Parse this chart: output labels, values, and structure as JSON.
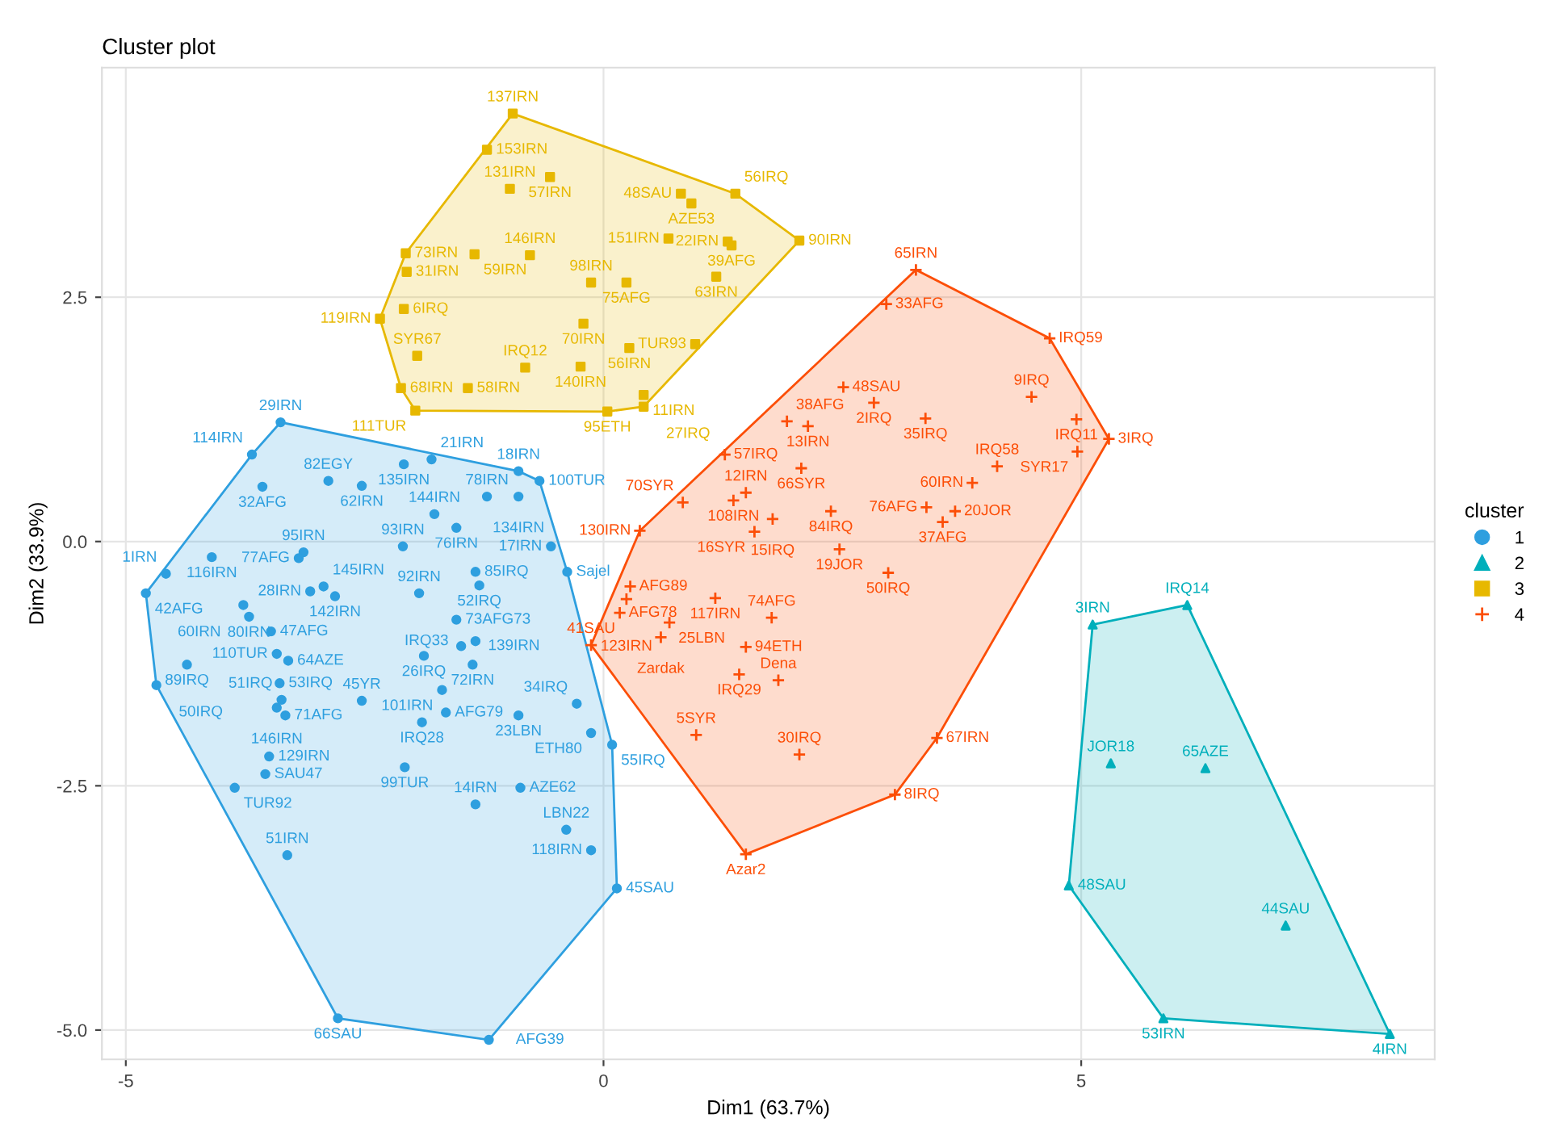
{
  "chart_data": {
    "type": "scatter",
    "title": "Cluster plot",
    "xlabel": "Dim1 (63.7%)",
    "ylabel": "Dim2 (33.9%)",
    "legend_title": "cluster",
    "legend": "right",
    "grid": true,
    "xlim": [
      -5.25,
      8.7
    ],
    "ylim": [
      -5.3,
      4.85
    ],
    "xticks": [
      -5,
      0,
      5
    ],
    "yticks": [
      {
        "value": -5,
        "label": "-5.0"
      },
      {
        "value": -2.5,
        "label": "-2.5"
      },
      {
        "value": 0,
        "label": "0.0"
      },
      {
        "value": 2.5,
        "label": "2.5"
      }
    ],
    "series": [
      {
        "name": "1",
        "color": "#2e9fdf",
        "marker": "circle",
        "x": [
          -3.38,
          -3.68,
          -2.09,
          -1.8,
          -0.89,
          -0.67,
          -3.57,
          -2.88,
          -2.53,
          -1.77,
          -1.22,
          -0.89,
          -0.55,
          -4.1,
          -4.58,
          -4.79,
          -3.14,
          -3.19,
          -2.1,
          -1.54,
          -2.93,
          -3.07,
          -2.81,
          -3.77,
          -1.34,
          -1.54,
          -1.3,
          -0.38,
          -3.48,
          -3.3,
          -3.42,
          -4.36,
          -4.68,
          -3.39,
          -3.37,
          -3.42,
          -3.33,
          -2.53,
          -1.49,
          -1.34,
          -1.88,
          -1.37,
          -1.69,
          -1.65,
          -1.9,
          -0.89,
          -0.28,
          -0.13,
          -3.5,
          -3.54,
          -3.86,
          -3.31,
          -2.78,
          -1.2,
          -2.08,
          -1.34,
          -0.87,
          -0.39,
          -0.13,
          0.14,
          0.09,
          -1.93,
          -3.71
        ],
        "values": [
          1.22,
          0.89,
          0.79,
          0.84,
          0.72,
          0.62,
          0.56,
          0.62,
          0.57,
          0.28,
          0.46,
          0.46,
          -0.05,
          -0.16,
          -0.33,
          -0.53,
          -0.11,
          -0.17,
          -0.05,
          0.14,
          -0.46,
          -0.51,
          -0.56,
          -0.65,
          -0.31,
          -0.8,
          -0.45,
          -0.31,
          -0.92,
          -1.22,
          -1.15,
          -1.26,
          -1.47,
          -1.45,
          -1.62,
          -1.7,
          -1.78,
          -1.63,
          -1.07,
          -1.02,
          -1.17,
          -1.26,
          -1.52,
          -1.75,
          -1.85,
          -1.78,
          -1.66,
          -1.96,
          -2.2,
          -2.38,
          -2.52,
          -3.21,
          -4.88,
          -5.1,
          -2.31,
          -2.69,
          -2.52,
          -2.95,
          -3.16,
          -3.55,
          -2.08,
          -0.53,
          -0.77
        ]
      },
      {
        "name": "2",
        "color": "#00afbb",
        "marker": "triangle",
        "x": [
          5.12,
          6.11,
          5.31,
          6.3,
          4.87,
          7.14,
          5.86,
          8.23
        ],
        "values": [
          -0.85,
          -0.65,
          -2.27,
          -2.32,
          -3.52,
          -3.93,
          -4.88,
          -5.04
        ]
      },
      {
        "name": "3",
        "color": "#e7b800",
        "marker": "square",
        "x": [
          -0.95,
          -1.22,
          -0.56,
          -0.98,
          0.81,
          0.92,
          1.38,
          2.05,
          1.3,
          1.34,
          0.68,
          -2.07,
          -2.06,
          -0.77,
          -1.35,
          -0.13,
          0.24,
          1.18,
          -2.09,
          -2.34,
          -0.21,
          0.27,
          0.96,
          -1.95,
          -0.82,
          -0.24,
          0.42,
          -2.12,
          -1.42,
          -1.97,
          0.04,
          0.42
        ],
        "values": [
          4.38,
          4.01,
          3.73,
          3.61,
          3.56,
          3.46,
          3.56,
          3.08,
          3.07,
          3.03,
          3.1,
          2.95,
          2.76,
          2.93,
          2.94,
          2.65,
          2.65,
          2.71,
          2.38,
          2.28,
          2.23,
          1.98,
          2.02,
          1.9,
          1.78,
          1.79,
          1.5,
          1.57,
          1.57,
          1.34,
          1.33,
          1.38
        ]
      },
      {
        "name": "4",
        "color": "#fc4e07",
        "marker": "cross",
        "x": [
          3.27,
          2.96,
          4.67,
          4.48,
          4.95,
          5.29,
          4.96,
          2.51,
          2.83,
          1.92,
          2.14,
          3.37,
          4.12,
          3.86,
          1.27,
          2.07,
          1.49,
          2.38,
          3.68,
          3.38,
          3.55,
          0.83,
          1.36,
          1.77,
          1.58,
          2.47,
          2.98,
          0.38,
          0.28,
          0.24,
          1.17,
          0.17,
          -0.13,
          0.69,
          0.6,
          1.76,
          1.49,
          1.83,
          1.42,
          0.97,
          2.05,
          3.49,
          3.05,
          1.49
        ],
        "values": [
          2.78,
          2.43,
          2.08,
          1.48,
          1.25,
          1.05,
          0.92,
          1.58,
          1.42,
          1.23,
          1.18,
          1.26,
          0.77,
          0.6,
          0.89,
          0.75,
          0.5,
          0.31,
          0.31,
          0.35,
          0.2,
          0.4,
          0.42,
          0.23,
          0.1,
          -0.08,
          -0.32,
          0.11,
          -0.46,
          -0.59,
          -0.58,
          -0.73,
          -1.06,
          -0.83,
          -0.98,
          -0.78,
          -1.08,
          -1.42,
          -1.36,
          -1.98,
          -2.18,
          -2.01,
          -2.59,
          -3.2
        ]
      }
    ],
    "annotations": [
      {
        "text": "29IRN",
        "x": -3.38,
        "y": 1.22
      },
      {
        "text": "114IRN",
        "x": -3.68,
        "y": 0.89
      },
      {
        "text": "135IRN",
        "x": -2.09,
        "y": 0.79
      },
      {
        "text": "21IRN",
        "x": -1.8,
        "y": 0.84
      },
      {
        "text": "18IRN",
        "x": -0.89,
        "y": 0.72
      },
      {
        "text": "100TUR",
        "x": -0.67,
        "y": 0.62
      },
      {
        "text": "32AFG",
        "x": -3.57,
        "y": 0.56
      },
      {
        "text": "82EGY",
        "x": -2.88,
        "y": 0.62
      },
      {
        "text": "62IRN",
        "x": -2.53,
        "y": 0.57
      },
      {
        "text": "144IRN",
        "x": -1.77,
        "y": 0.28
      },
      {
        "text": "78IRN",
        "x": -1.22,
        "y": 0.46
      },
      {
        "text": "134IRN",
        "x": -0.89,
        "y": 0.46
      },
      {
        "text": "17IRN",
        "x": -0.55,
        "y": -0.05
      },
      {
        "text": "116IRN",
        "x": -4.1,
        "y": -0.16
      },
      {
        "text": "1IRN",
        "x": -4.58,
        "y": -0.33
      },
      {
        "text": "42AFG",
        "x": -4.79,
        "y": -0.53
      },
      {
        "text": "95IRN",
        "x": -3.14,
        "y": -0.11
      },
      {
        "text": "77AFG",
        "x": -3.19,
        "y": -0.17
      },
      {
        "text": "93IRN",
        "x": -2.1,
        "y": -0.05
      },
      {
        "text": "76IRN",
        "x": -1.54,
        "y": 0.14
      },
      {
        "text": "145IRN",
        "x": -2.93,
        "y": -0.46
      },
      {
        "text": "28IRN",
        "x": -3.07,
        "y": -0.51
      },
      {
        "text": "142IRN",
        "x": -2.81,
        "y": -0.56
      },
      {
        "text": "60IRN",
        "x": -3.77,
        "y": -0.65
      },
      {
        "text": "85IRQ",
        "x": -1.34,
        "y": -0.31
      },
      {
        "text": "73AFG73",
        "x": -1.54,
        "y": -0.8
      },
      {
        "text": "52IRQ",
        "x": -1.3,
        "y": -0.45
      },
      {
        "text": "Sajel",
        "x": -0.38,
        "y": -0.31
      },
      {
        "text": "47AFG",
        "x": -3.48,
        "y": -0.92
      },
      {
        "text": "64AZE",
        "x": -3.3,
        "y": -1.22
      },
      {
        "text": "110TUR",
        "x": -3.42,
        "y": -1.15
      },
      {
        "text": "89IRQ",
        "x": -4.36,
        "y": -1.26
      },
      {
        "text": "50IRQ",
        "x": -4.68,
        "y": -1.47
      },
      {
        "text": "53IRQ",
        "x": -3.39,
        "y": -1.45
      },
      {
        "text": "51IRQ",
        "x": -3.37,
        "y": -1.62
      },
      {
        "text": "146IRN",
        "x": -3.42,
        "y": -1.7
      },
      {
        "text": "71AFG",
        "x": -3.33,
        "y": -1.78
      },
      {
        "text": "45YR",
        "x": -2.53,
        "y": -1.63
      },
      {
        "text": "139IRN",
        "x": -1.49,
        "y": -1.07
      },
      {
        "text": "IRQ33",
        "x": -1.34,
        "y": -1.02
      },
      {
        "text": "26IRQ",
        "x": -1.88,
        "y": -1.17
      },
      {
        "text": "72IRN",
        "x": -1.37,
        "y": -1.26
      },
      {
        "text": "101IRN",
        "x": -1.69,
        "y": -1.52
      },
      {
        "text": "AFG79",
        "x": -1.65,
        "y": -1.75
      },
      {
        "text": "IRQ28",
        "x": -1.9,
        "y": -1.85
      },
      {
        "text": "23LBN",
        "x": -0.89,
        "y": -1.78
      },
      {
        "text": "34IRQ",
        "x": -0.28,
        "y": -1.66
      },
      {
        "text": "ETH80",
        "x": -0.13,
        "y": -1.96
      },
      {
        "text": "129IRN",
        "x": -3.5,
        "y": -2.2
      },
      {
        "text": "SAU47",
        "x": -3.54,
        "y": -2.38
      },
      {
        "text": "TUR92",
        "x": -3.86,
        "y": -2.52
      },
      {
        "text": "51IRN",
        "x": -3.31,
        "y": -3.21
      },
      {
        "text": "66SAU",
        "x": -2.78,
        "y": -4.88
      },
      {
        "text": "AFG39",
        "x": -1.2,
        "y": -5.1
      },
      {
        "text": "99TUR",
        "x": -2.08,
        "y": -2.31
      },
      {
        "text": "14IRN",
        "x": -1.34,
        "y": -2.69
      },
      {
        "text": "AZE62",
        "x": -0.87,
        "y": -2.52
      },
      {
        "text": "LBN22",
        "x": -0.39,
        "y": -2.95
      },
      {
        "text": "118IRN",
        "x": -0.13,
        "y": -3.16
      },
      {
        "text": "45SAU",
        "x": 0.14,
        "y": -3.55
      },
      {
        "text": "55IRQ",
        "x": 0.09,
        "y": -2.08
      },
      {
        "text": "92IRN",
        "x": -1.93,
        "y": -0.53
      },
      {
        "text": "80IRN",
        "x": -3.71,
        "y": -0.77
      },
      {
        "text": "3IRN",
        "x": 5.12,
        "y": -0.85
      },
      {
        "text": "IRQ14",
        "x": 6.11,
        "y": -0.65
      },
      {
        "text": "JOR18",
        "x": 5.31,
        "y": -2.27
      },
      {
        "text": "65AZE",
        "x": 6.3,
        "y": -2.32
      },
      {
        "text": "48SAU",
        "x": 4.87,
        "y": -3.52
      },
      {
        "text": "44SAU",
        "x": 7.14,
        "y": -3.93
      },
      {
        "text": "53IRN",
        "x": 5.86,
        "y": -4.88
      },
      {
        "text": "4IRN",
        "x": 8.23,
        "y": -5.04
      },
      {
        "text": "137IRN",
        "x": -0.95,
        "y": 4.38
      },
      {
        "text": "153IRN",
        "x": -1.22,
        "y": 4.01
      },
      {
        "text": "57IRN",
        "x": -0.56,
        "y": 3.73
      },
      {
        "text": "131IRN",
        "x": -0.98,
        "y": 3.61
      },
      {
        "text": "48SAU",
        "x": 0.81,
        "y": 3.56
      },
      {
        "text": "AZE53",
        "x": 0.92,
        "y": 3.46
      },
      {
        "text": "56IRQ",
        "x": 1.38,
        "y": 3.56
      },
      {
        "text": "90IRN",
        "x": 2.05,
        "y": 3.08
      },
      {
        "text": "22IRN",
        "x": 1.3,
        "y": 3.07
      },
      {
        "text": "39AFG",
        "x": 1.34,
        "y": 3.03
      },
      {
        "text": "151IRN",
        "x": 0.68,
        "y": 3.1
      },
      {
        "text": "73IRN",
        "x": -2.07,
        "y": 2.95
      },
      {
        "text": "31IRN",
        "x": -2.06,
        "y": 2.76
      },
      {
        "text": "146IRN",
        "x": -0.77,
        "y": 2.93
      },
      {
        "text": "59IRN",
        "x": -1.35,
        "y": 2.94
      },
      {
        "text": "98IRN",
        "x": -0.13,
        "y": 2.65
      },
      {
        "text": "75AFG",
        "x": 0.24,
        "y": 2.65
      },
      {
        "text": "63IRN",
        "x": 1.18,
        "y": 2.71
      },
      {
        "text": "6IRQ",
        "x": -2.09,
        "y": 2.38
      },
      {
        "text": "119IRN",
        "x": -2.34,
        "y": 2.28
      },
      {
        "text": "70IRN",
        "x": -0.21,
        "y": 2.23
      },
      {
        "text": "56IRN",
        "x": 0.27,
        "y": 1.98
      },
      {
        "text": "TUR93",
        "x": 0.96,
        "y": 2.02
      },
      {
        "text": "SYR67",
        "x": -1.95,
        "y": 1.9
      },
      {
        "text": "IRQ12",
        "x": -0.82,
        "y": 1.78
      },
      {
        "text": "140IRN",
        "x": -0.24,
        "y": 1.79
      },
      {
        "text": "11IRN",
        "x": 0.42,
        "y": 1.5
      },
      {
        "text": "68IRN",
        "x": -2.12,
        "y": 1.57
      },
      {
        "text": "58IRN",
        "x": -1.42,
        "y": 1.57
      },
      {
        "text": "111TUR",
        "x": -1.97,
        "y": 1.34
      },
      {
        "text": "95ETH",
        "x": 0.04,
        "y": 1.33
      },
      {
        "text": "27IRQ",
        "x": 0.42,
        "y": 1.38
      },
      {
        "text": "65IRN",
        "x": 3.27,
        "y": 2.78
      },
      {
        "text": "33AFG",
        "x": 2.96,
        "y": 2.43
      },
      {
        "text": "IRQ59",
        "x": 4.67,
        "y": 2.08
      },
      {
        "text": "9IRQ",
        "x": 4.48,
        "y": 1.48
      },
      {
        "text": "IRQ11",
        "x": 4.95,
        "y": 1.25
      },
      {
        "text": "3IRQ",
        "x": 5.29,
        "y": 1.05
      },
      {
        "text": "SYR17",
        "x": 4.96,
        "y": 0.92
      },
      {
        "text": "48SAU",
        "x": 2.51,
        "y": 1.58
      },
      {
        "text": "2IRQ",
        "x": 2.83,
        "y": 1.42
      },
      {
        "text": "38AFG",
        "x": 1.92,
        "y": 1.23
      },
      {
        "text": "13IRN",
        "x": 2.14,
        "y": 1.18
      },
      {
        "text": "35IRQ",
        "x": 3.37,
        "y": 1.26
      },
      {
        "text": "IRQ58",
        "x": 4.12,
        "y": 0.77
      },
      {
        "text": "60IRN",
        "x": 3.86,
        "y": 0.6
      },
      {
        "text": "57IRQ",
        "x": 1.27,
        "y": 0.89
      },
      {
        "text": "66SYR",
        "x": 2.07,
        "y": 0.75
      },
      {
        "text": "12IRN",
        "x": 1.49,
        "y": 0.5
      },
      {
        "text": "84IRQ",
        "x": 2.38,
        "y": 0.31
      },
      {
        "text": "20JOR",
        "x": 3.68,
        "y": 0.31
      },
      {
        "text": "76AFG",
        "x": 3.38,
        "y": 0.35
      },
      {
        "text": "37AFG",
        "x": 3.55,
        "y": 0.2
      },
      {
        "text": "70SYR",
        "x": 0.83,
        "y": 0.4
      },
      {
        "text": "108IRN",
        "x": 1.36,
        "y": 0.42
      },
      {
        "text": "15IRQ",
        "x": 1.77,
        "y": 0.23
      },
      {
        "text": "16SYR",
        "x": 1.58,
        "y": 0.1
      },
      {
        "text": "19JOR",
        "x": 2.47,
        "y": -0.08
      },
      {
        "text": "50IRQ",
        "x": 2.98,
        "y": -0.32
      },
      {
        "text": "130IRN",
        "x": 0.38,
        "y": 0.11
      },
      {
        "text": "AFG89",
        "x": 0.28,
        "y": -0.46
      },
      {
        "text": "123IRN",
        "x": 0.24,
        "y": -0.59
      },
      {
        "text": "117IRN",
        "x": 1.17,
        "y": -0.58
      },
      {
        "text": "AFG78",
        "x": 0.17,
        "y": -0.73
      },
      {
        "text": "41SAU",
        "x": -0.13,
        "y": -1.06
      },
      {
        "text": "25LBN",
        "x": 0.69,
        "y": -0.83
      },
      {
        "text": "Zardak",
        "x": 0.6,
        "y": -0.98
      },
      {
        "text": "74AFG",
        "x": 1.76,
        "y": -0.78
      },
      {
        "text": "94ETH",
        "x": 1.49,
        "y": -1.08
      },
      {
        "text": "Dena",
        "x": 1.83,
        "y": -1.42
      },
      {
        "text": "IRQ29",
        "x": 1.42,
        "y": -1.36
      },
      {
        "text": "5SYR",
        "x": 0.97,
        "y": -1.98
      },
      {
        "text": "30IRQ",
        "x": 2.05,
        "y": -2.18
      },
      {
        "text": "67IRN",
        "x": 3.49,
        "y": -2.01
      },
      {
        "text": "8IRQ",
        "x": 3.05,
        "y": -2.59
      },
      {
        "text": "Azar2",
        "x": 1.49,
        "y": -3.2
      }
    ]
  }
}
